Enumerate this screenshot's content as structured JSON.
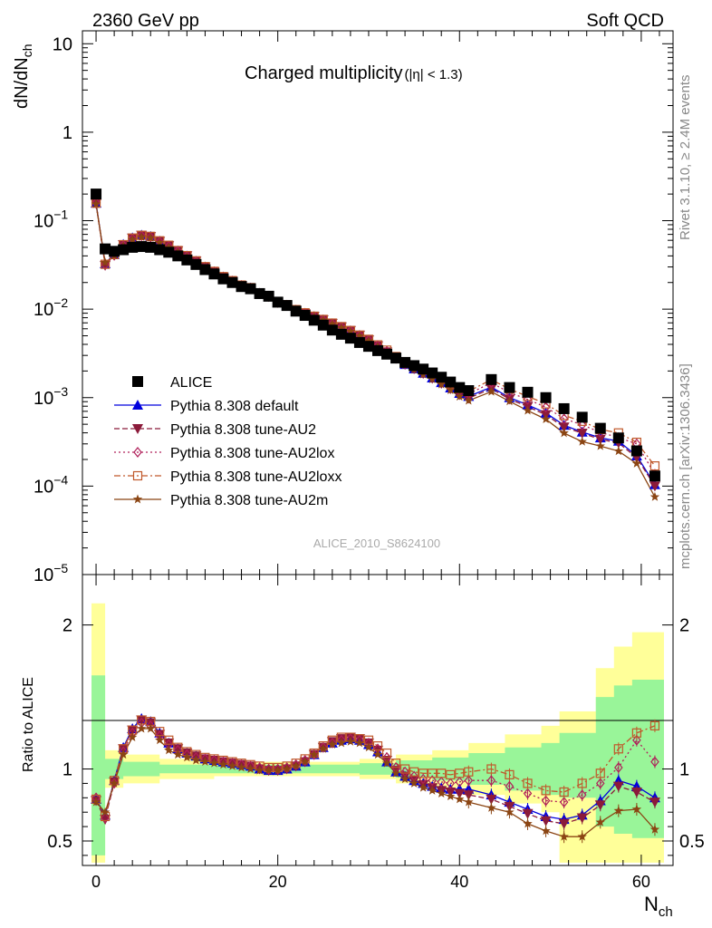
{
  "header": {
    "left": "2360 GeV pp",
    "right": "Soft QCD"
  },
  "plot_title": {
    "main": "Charged multiplicity",
    "cut": "(|η| < 1.3)"
  },
  "ylabel_top": {
    "main": "dN/dN",
    "sub": "ch"
  },
  "ylabel_bottom": "Ratio to ALICE",
  "xlabel": {
    "main": "N",
    "sub": "ch"
  },
  "side_text": {
    "rivet": "Rivet 3.1.10, ≥ 2.4M events",
    "url": "mcplots.cern.ch [arXiv:1306.3436]"
  },
  "watermark": "ALICE_2010_S8624100",
  "colors": {
    "alice": "#000000",
    "default": "#0000dd",
    "au2": "#8b1a3a",
    "au2lox": "#b0205a",
    "au2loxx": "#c0582a",
    "au2m": "#8b4513",
    "band_inner": "#99f599",
    "band_outer": "#ffff99"
  },
  "chart_data": {
    "type": "line",
    "x_ticks": [
      "0",
      "20",
      "40",
      "60"
    ],
    "xlim": [
      -1.5,
      63.5
    ],
    "top_panel": {
      "yscale": "log",
      "ylim": [
        1e-05,
        14
      ],
      "y_ticks": [
        {
          "value": 10,
          "base": "10",
          "exp": ""
        },
        {
          "value": 1,
          "base": "1",
          "exp": ""
        },
        {
          "value": 0.1,
          "base": "10",
          "exp": "−1"
        },
        {
          "value": 0.01,
          "base": "10",
          "exp": "−2"
        },
        {
          "value": 0.001,
          "base": "10",
          "exp": "−3"
        },
        {
          "value": 0.0001,
          "base": "10",
          "exp": "−4"
        },
        {
          "value": 1e-05,
          "base": "10",
          "exp": "−5"
        }
      ]
    },
    "bottom_panel": {
      "ylim": [
        0.33,
        2.35
      ],
      "y_ticks": [
        {
          "value": 0.5,
          "label": "0.5"
        },
        {
          "value": 1,
          "label": "1"
        },
        {
          "value": 2,
          "label": "2"
        }
      ],
      "band_outer": [
        [
          0,
          0.35,
          2.15
        ],
        [
          2,
          0.87,
          1.13
        ],
        [
          4,
          0.9,
          1.1
        ],
        [
          8,
          0.93,
          1.07
        ],
        [
          14,
          0.95,
          1.05
        ],
        [
          22,
          0.95,
          1.05
        ],
        [
          30,
          0.93,
          1.07
        ],
        [
          34,
          0.9,
          1.1
        ],
        [
          38,
          0.87,
          1.13
        ],
        [
          42,
          0.82,
          1.18
        ],
        [
          46,
          0.76,
          1.24
        ],
        [
          50,
          0.7,
          1.3
        ],
        [
          52,
          0.35,
          1.4
        ],
        [
          56,
          0.35,
          1.7
        ],
        [
          58,
          0.35,
          1.85
        ],
        [
          60,
          0.35,
          1.95
        ]
      ],
      "band_inner": [
        [
          0,
          0.4,
          1.65
        ],
        [
          2,
          0.93,
          1.07
        ],
        [
          4,
          0.95,
          1.05
        ],
        [
          8,
          0.97,
          1.03
        ],
        [
          14,
          0.97,
          1.03
        ],
        [
          22,
          0.97,
          1.03
        ],
        [
          30,
          0.96,
          1.04
        ],
        [
          34,
          0.94,
          1.06
        ],
        [
          38,
          0.92,
          1.08
        ],
        [
          42,
          0.89,
          1.11
        ],
        [
          46,
          0.85,
          1.15
        ],
        [
          50,
          0.82,
          1.18
        ],
        [
          52,
          0.8,
          1.25
        ],
        [
          56,
          0.6,
          1.5
        ],
        [
          58,
          0.55,
          1.58
        ],
        [
          60,
          0.52,
          1.62
        ]
      ]
    },
    "x": [
      0,
      1,
      2,
      3,
      4,
      5,
      6,
      7,
      8,
      9,
      10,
      11,
      12,
      13,
      14,
      15,
      16,
      17,
      18,
      19,
      20,
      21,
      22,
      23,
      24,
      25,
      26,
      27,
      28,
      29,
      30,
      31,
      32,
      33,
      34,
      35,
      36,
      37,
      38,
      39,
      40,
      41,
      43.5,
      45.5,
      47.5,
      49.5,
      51.5,
      53.5,
      55.5,
      57.5,
      59.5,
      61.5
    ],
    "series": [
      {
        "name": "ALICE",
        "key": "alice",
        "marker": "square",
        "dash": "",
        "values": [
          0.2,
          0.048,
          0.045,
          0.047,
          0.05,
          0.051,
          0.05,
          0.047,
          0.044,
          0.04,
          0.036,
          0.032,
          0.028,
          0.025,
          0.022,
          0.02,
          0.018,
          0.017,
          0.015,
          0.014,
          0.012,
          0.011,
          0.0095,
          0.0085,
          0.0075,
          0.0066,
          0.0058,
          0.0052,
          0.0047,
          0.0042,
          0.0038,
          0.0034,
          0.0031,
          0.0028,
          0.0025,
          0.0023,
          0.0021,
          0.0019,
          0.0017,
          0.0015,
          0.0013,
          0.0012,
          0.0016,
          0.0013,
          0.00115,
          0.001,
          0.00075,
          0.0006,
          0.00045,
          0.00035,
          0.00025,
          0.00013
        ]
      },
      {
        "name": "Pythia 8.308 default",
        "key": "default",
        "marker": "triangle-up",
        "dash": "",
        "ratio": [
          0.79,
          0.68,
          0.92,
          1.15,
          1.28,
          1.35,
          1.33,
          1.25,
          1.18,
          1.14,
          1.11,
          1.09,
          1.07,
          1.06,
          1.05,
          1.04,
          1.03,
          1.02,
          1.0,
          0.99,
          0.99,
          1.0,
          1.02,
          1.05,
          1.1,
          1.15,
          1.18,
          1.2,
          1.21,
          1.2,
          1.17,
          1.12,
          1.05,
          0.98,
          0.95,
          0.92,
          0.9,
          0.88,
          0.87,
          0.86,
          0.86,
          0.86,
          0.82,
          0.77,
          0.72,
          0.67,
          0.65,
          0.68,
          0.78,
          0.92,
          0.88,
          0.8
        ]
      },
      {
        "name": "Pythia 8.308 tune-AU2",
        "key": "au2",
        "marker": "triangle-down",
        "dash": "6,3",
        "ratio": [
          0.78,
          0.65,
          0.91,
          1.14,
          1.27,
          1.34,
          1.32,
          1.24,
          1.18,
          1.14,
          1.11,
          1.09,
          1.07,
          1.06,
          1.05,
          1.04,
          1.03,
          1.02,
          1.0,
          0.99,
          0.99,
          1.0,
          1.02,
          1.05,
          1.1,
          1.15,
          1.19,
          1.21,
          1.22,
          1.21,
          1.18,
          1.13,
          1.06,
          0.99,
          0.95,
          0.92,
          0.89,
          0.87,
          0.85,
          0.84,
          0.83,
          0.82,
          0.79,
          0.74,
          0.69,
          0.64,
          0.62,
          0.66,
          0.75,
          0.88,
          0.84,
          0.77
        ]
      },
      {
        "name": "Pythia 8.308 tune-AU2lox",
        "key": "au2lox",
        "marker": "diamond",
        "dash": "2,3",
        "ratio": [
          0.8,
          0.66,
          0.9,
          1.12,
          1.25,
          1.32,
          1.3,
          1.23,
          1.17,
          1.13,
          1.1,
          1.08,
          1.07,
          1.06,
          1.05,
          1.04,
          1.03,
          1.02,
          1.01,
          1.0,
          1.0,
          1.01,
          1.03,
          1.06,
          1.1,
          1.15,
          1.18,
          1.2,
          1.21,
          1.2,
          1.18,
          1.14,
          1.08,
          1.01,
          0.98,
          0.95,
          0.93,
          0.92,
          0.91,
          0.9,
          0.91,
          0.92,
          0.92,
          0.88,
          0.83,
          0.78,
          0.77,
          0.82,
          0.9,
          1.01,
          1.2,
          1.05
        ]
      },
      {
        "name": "Pythia 8.308 tune-AU2loxx",
        "key": "au2loxx",
        "marker": "square-open",
        "dash": "7,3,2,3",
        "ratio": [
          0.79,
          0.67,
          0.92,
          1.14,
          1.27,
          1.34,
          1.33,
          1.26,
          1.2,
          1.15,
          1.12,
          1.1,
          1.08,
          1.07,
          1.06,
          1.05,
          1.04,
          1.03,
          1.02,
          1.01,
          1.01,
          1.02,
          1.04,
          1.07,
          1.11,
          1.16,
          1.2,
          1.22,
          1.22,
          1.21,
          1.2,
          1.16,
          1.11,
          1.04,
          1.0,
          0.98,
          0.97,
          0.97,
          0.97,
          0.96,
          0.97,
          0.98,
          1.0,
          0.96,
          0.9,
          0.85,
          0.84,
          0.9,
          0.97,
          1.14,
          1.25,
          1.3
        ]
      },
      {
        "name": "Pythia 8.308 tune-AU2m",
        "key": "au2m",
        "marker": "star",
        "dash": "",
        "ratio": [
          0.77,
          0.7,
          0.9,
          1.1,
          1.22,
          1.28,
          1.28,
          1.2,
          1.13,
          1.1,
          1.08,
          1.06,
          1.05,
          1.04,
          1.03,
          1.02,
          1.01,
          1.0,
          0.99,
          0.99,
          0.99,
          1.0,
          1.02,
          1.05,
          1.1,
          1.14,
          1.17,
          1.18,
          1.19,
          1.18,
          1.15,
          1.1,
          1.04,
          0.97,
          0.93,
          0.9,
          0.87,
          0.85,
          0.83,
          0.81,
          0.79,
          0.77,
          0.73,
          0.7,
          0.62,
          0.57,
          0.53,
          0.53,
          0.63,
          0.71,
          0.72,
          0.58
        ]
      }
    ]
  }
}
